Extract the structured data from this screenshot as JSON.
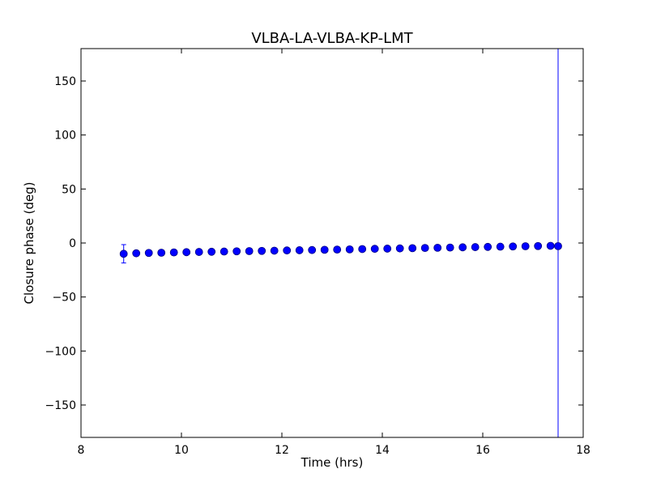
{
  "chart_data": {
    "type": "scatter",
    "title": "VLBA-LA-VLBA-KP-LMT",
    "xlabel": "Time (hrs)",
    "ylabel": "Closure phase (deg)",
    "xlim": [
      8,
      18
    ],
    "ylim": [
      -180,
      180
    ],
    "xticks": [
      8,
      10,
      12,
      14,
      16,
      18
    ],
    "xtick_labels": [
      "8",
      "10",
      "12",
      "14",
      "16",
      "18"
    ],
    "yticks": [
      -150,
      -100,
      -50,
      0,
      50,
      100,
      150
    ],
    "ytick_labels": [
      "−150",
      "−100",
      "−50",
      "0",
      "50",
      "100",
      "150"
    ],
    "grid": false,
    "marker_color": "#0000ff",
    "marker_edge_color": "#000080",
    "series": [
      {
        "x": [
          8.85,
          9.1,
          9.35,
          9.6,
          9.85,
          10.1,
          10.35,
          10.6,
          10.85,
          11.1,
          11.35,
          11.6,
          11.85,
          12.1,
          12.35,
          12.6,
          12.85,
          13.1,
          13.35,
          13.6,
          13.85,
          14.1,
          14.35,
          14.6,
          14.85,
          15.1,
          15.35,
          15.6,
          15.85,
          16.1,
          16.35,
          16.6,
          16.85,
          17.1,
          17.35,
          17.5
        ],
        "y": [
          -10,
          -9.5,
          -9.2,
          -9.0,
          -8.7,
          -8.5,
          -8.3,
          -8.1,
          -7.9,
          -7.7,
          -7.5,
          -7.3,
          -7.1,
          -6.9,
          -6.7,
          -6.5,
          -6.3,
          -6.1,
          -5.9,
          -5.6,
          -5.4,
          -5.2,
          -5.0,
          -4.8,
          -4.6,
          -4.4,
          -4.2,
          -4.0,
          -3.8,
          -3.6,
          -3.4,
          -3.2,
          -3.0,
          -2.8,
          -2.6,
          -2.9
        ],
        "yerr": [
          8.5,
          1.5,
          1.5,
          1.5,
          1.5,
          1.5,
          1.5,
          1.5,
          1.5,
          1.5,
          1.5,
          1.5,
          1.5,
          1.5,
          1.5,
          1.5,
          1.5,
          1.5,
          1.5,
          1.5,
          1.5,
          1.5,
          1.5,
          1.5,
          1.5,
          1.5,
          1.5,
          1.5,
          1.5,
          1.5,
          1.5,
          1.5,
          1.5,
          1.5,
          1.5,
          360
        ]
      }
    ]
  }
}
